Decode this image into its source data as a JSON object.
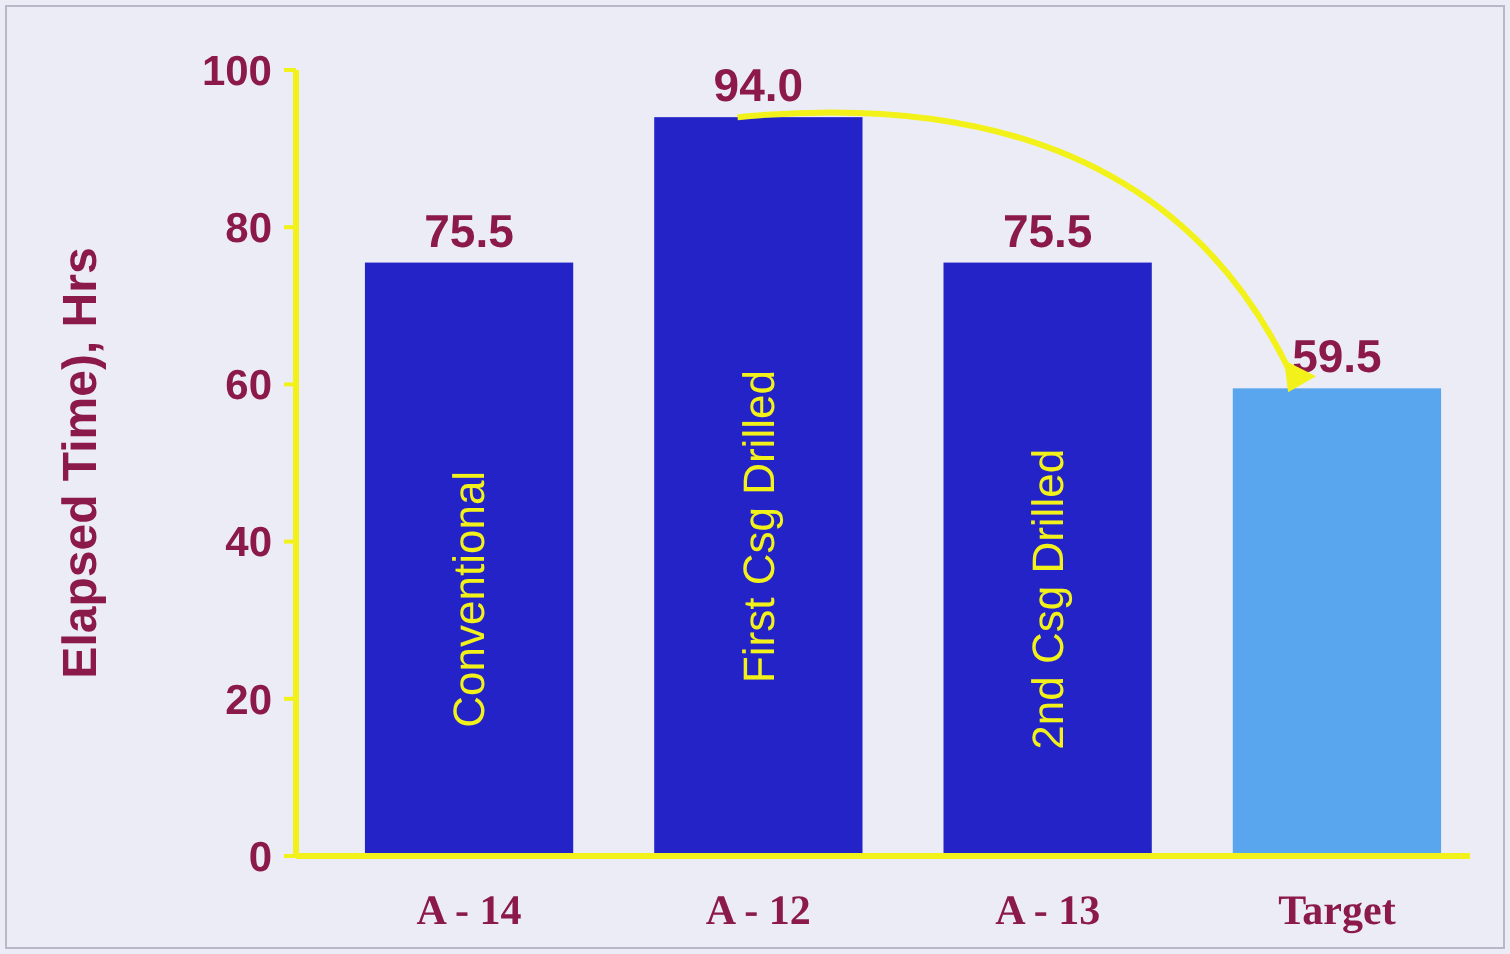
{
  "chart_data": {
    "type": "bar",
    "ylabel": "Elapsed Time), Hrs",
    "categories": [
      "A - 14",
      "A - 12",
      "A - 13",
      "Target"
    ],
    "values": [
      75.5,
      94.0,
      75.5,
      59.5
    ],
    "colors": [
      "#2323c8",
      "#2323c8",
      "#2323c8",
      "#5aa6ee"
    ],
    "value_labels": [
      "75.5",
      "94.0",
      "75.5",
      "59.5"
    ],
    "ylim": [
      0,
      100
    ],
    "yticks": [
      0,
      20,
      40,
      60,
      80,
      100
    ],
    "grid": false,
    "annotations": [
      "Conventional",
      "First Csg Drilled",
      "2nd Csg Drilled"
    ]
  }
}
